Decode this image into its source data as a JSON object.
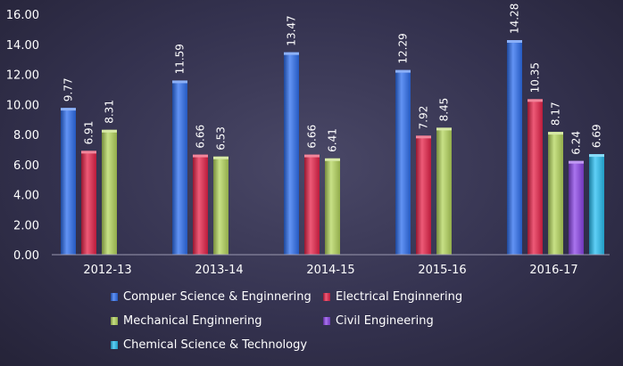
{
  "chart_data": {
    "type": "bar",
    "title": "",
    "xlabel": "",
    "ylabel": "",
    "ylim": [
      0,
      16
    ],
    "yticks": [
      "0.00",
      "2.00",
      "4.00",
      "6.00",
      "8.00",
      "10.00",
      "12.00",
      "14.00",
      "16.00"
    ],
    "grid": false,
    "legend_position": "bottom",
    "categories": [
      "2012-13",
      "2013-14",
      "2014-15",
      "2015-16",
      "2016-17"
    ],
    "series": [
      {
        "name": "Compuer Science & Enginnering",
        "color": "#2e6ff0",
        "values": [
          9.77,
          11.59,
          13.47,
          12.29,
          14.28
        ],
        "labels": [
          "9.77",
          "11.59",
          "13.47",
          "12.29",
          "14.28"
        ]
      },
      {
        "name": "Electrical Enginnering",
        "color": "#e8234a",
        "values": [
          6.91,
          6.66,
          6.66,
          7.92,
          10.35
        ],
        "labels": [
          "6.91",
          "6.66",
          "6.66",
          "7.92",
          "10.35"
        ]
      },
      {
        "name": "Mechanical Enginnering",
        "color": "#b6d75e",
        "values": [
          8.31,
          6.53,
          6.41,
          8.45,
          8.17
        ],
        "labels": [
          "8.31",
          "6.53",
          "6.41",
          "8.45",
          "8.17"
        ]
      },
      {
        "name": "Civil Engineering",
        "color": "#8c45e8",
        "values": [
          null,
          null,
          null,
          null,
          6.24
        ],
        "labels": [
          null,
          null,
          null,
          null,
          "6.24"
        ]
      },
      {
        "name": "Chemical Science & Technology",
        "color": "#29c0f4",
        "values": [
          null,
          null,
          null,
          null,
          6.69
        ],
        "labels": [
          null,
          null,
          null,
          null,
          "6.69"
        ]
      }
    ]
  }
}
